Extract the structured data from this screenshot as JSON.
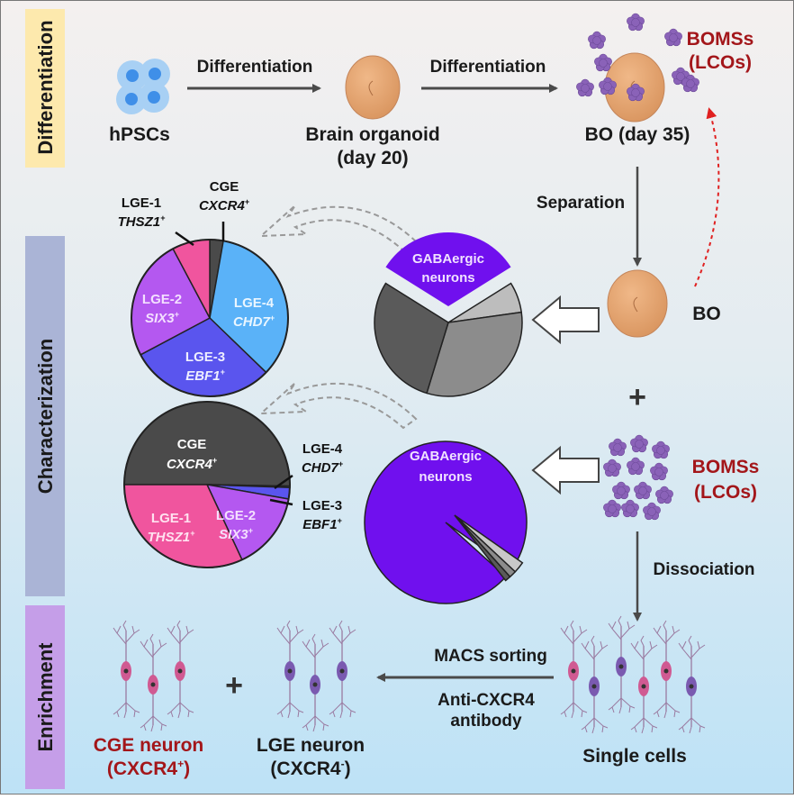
{
  "sections": {
    "differentiation": "Differentiation",
    "characterization": "Characterization",
    "enrichment": "Enrichment"
  },
  "colors": {
    "accent_red": "#a3161a",
    "cge": "#4a4a4a",
    "lge1": "#f0559e",
    "lge2": "#b458f0",
    "lge3": "#5a55ee",
    "lge4": "#5ab2f8",
    "gaba": "#7010ee"
  },
  "top": {
    "hpscs": "hPSCs",
    "arrow1": "Differentiation",
    "organoid_1": "Brain organoid",
    "organoid_2": "(day 20)",
    "arrow2": "Differentiation",
    "bo35": "BO (day 35)",
    "bomss_1": "BOMSs",
    "bomss_2": "(LCOs)"
  },
  "right": {
    "separation": "Separation",
    "bo": "BO",
    "plus": "+",
    "bomss_1": "BOMSs",
    "bomss_2": "(LCOs)",
    "dissociation": "Dissociation"
  },
  "pie_top": {
    "gaba_1": "GABAergic",
    "gaba_2": "neurons",
    "lge1": "LGE-1",
    "lge1_gene": "THSZ1",
    "cge": "CGE",
    "cge_gene": "CXCR4",
    "lge2": "LGE-2",
    "lge2_gene": "SIX3",
    "lge4": "LGE-4",
    "lge4_gene": "CHD7",
    "lge3": "LGE-3",
    "lge3_gene": "EBF1",
    "sup": "+"
  },
  "pie_bottom": {
    "gaba_1": "GABAergic",
    "gaba_2": "neurons",
    "cge": "CGE",
    "cge_gene": "CXCR4",
    "lge4": "LGE-4",
    "lge4_gene": "CHD7",
    "lge3": "LGE-3",
    "lge3_gene": "EBF1",
    "lge1": "LGE-1",
    "lge1_gene": "THSZ1",
    "lge2": "LGE-2",
    "lge2_gene": "SIX3",
    "sup": "+"
  },
  "bottom": {
    "plus": "+",
    "macs": "MACS sorting",
    "anti_1": "Anti-CXCR4",
    "anti_2": "antibody",
    "cge_neuron": "CGE neuron",
    "cge_marker": "(CXCR4",
    "cge_sup": "+",
    "close": ")",
    "lge_neuron": "LGE neuron",
    "lge_marker": "(CXCR4",
    "lge_sup": "-",
    "single": "Single cells"
  }
}
